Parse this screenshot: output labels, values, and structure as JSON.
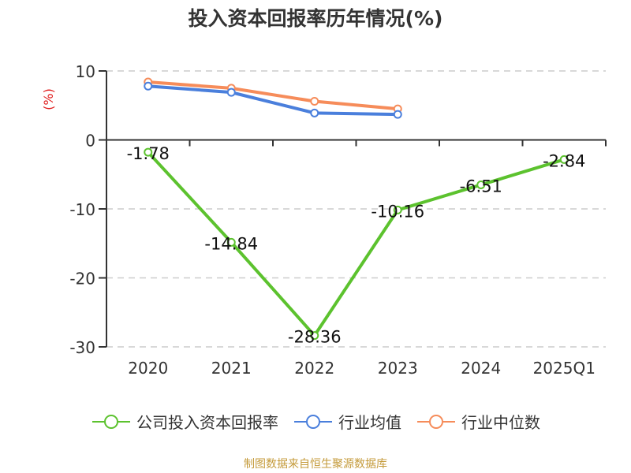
{
  "title": "投入资本回报率历年情况(%)",
  "footer": "制图数据来自恒生聚源数据库",
  "legend": [
    {
      "label": "公司投入资本回报率",
      "color": "#5cc22e"
    },
    {
      "label": "行业均值",
      "color": "#4a7fdc"
    },
    {
      "label": "行业中位数",
      "color": "#f68c5a"
    }
  ],
  "axis": {
    "y_unit": "(%)",
    "y_unit_color": "#e02020",
    "y_ticks": [
      "10",
      "0",
      "-10",
      "-20",
      "-30"
    ],
    "x_ticks": [
      "2020",
      "2021",
      "2022",
      "2023",
      "2024",
      "2025Q1"
    ]
  },
  "chart_data": {
    "type": "line",
    "title": "投入资本回报率历年情况(%)",
    "xlabel": "",
    "ylabel": "(%)",
    "ylim": [
      -30,
      10
    ],
    "grid": true,
    "legend_position": "bottom",
    "categories": [
      "2020",
      "2021",
      "2022",
      "2023",
      "2024",
      "2025Q1"
    ],
    "series": [
      {
        "name": "公司投入资本回报率",
        "color": "#5cc22e",
        "values": [
          -1.78,
          -14.84,
          -28.36,
          -10.16,
          -6.51,
          -2.84
        ],
        "labels": [
          "-1.78",
          "-14.84",
          "-28.36",
          "-10.16",
          "-6.51",
          "-2.84"
        ]
      },
      {
        "name": "行业均值",
        "color": "#4a7fdc",
        "values": [
          7.8,
          6.9,
          3.9,
          3.7,
          null,
          null
        ]
      },
      {
        "name": "行业中位数",
        "color": "#f68c5a",
        "values": [
          8.4,
          7.5,
          5.6,
          4.5,
          null,
          null
        ]
      }
    ]
  }
}
